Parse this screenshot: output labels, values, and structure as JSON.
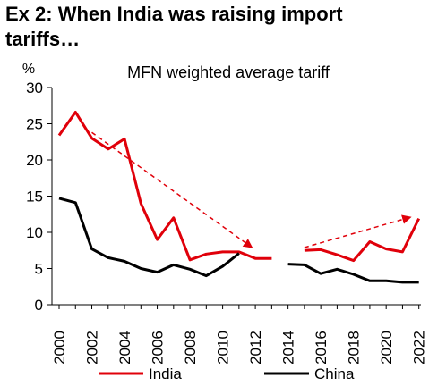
{
  "title": "Ex 2: When India was raising import tariffs…",
  "chart_data": {
    "type": "line",
    "subtitle": "MFN weighted average tariff",
    "ylabel": "%",
    "xlabel": "",
    "ylim": [
      0,
      30
    ],
    "xlim": [
      2000,
      2022
    ],
    "yticks": [
      0,
      5,
      10,
      15,
      20,
      25,
      30
    ],
    "xticks": [
      2000,
      2002,
      2004,
      2006,
      2008,
      2010,
      2012,
      2014,
      2016,
      2018,
      2020,
      2022
    ],
    "grid": false,
    "legend_position": "bottom",
    "series": [
      {
        "name": "India",
        "color": "#e0000a",
        "segments": [
          [
            [
              2000,
              23.4
            ],
            [
              2001,
              26.6
            ],
            [
              2002,
              23.0
            ],
            [
              2003,
              21.5
            ],
            [
              2004,
              22.9
            ],
            [
              2005,
              14.0
            ],
            [
              2006,
              9.0
            ],
            [
              2007,
              12.0
            ],
            [
              2008,
              6.2
            ],
            [
              2009,
              7.0
            ],
            [
              2010,
              7.3
            ],
            [
              2011,
              7.3
            ],
            [
              2012,
              6.4
            ],
            [
              2013,
              6.4
            ]
          ],
          [
            [
              2015,
              7.5
            ],
            [
              2016,
              7.6
            ],
            [
              2017,
              6.9
            ],
            [
              2018,
              6.1
            ],
            [
              2019,
              8.7
            ],
            [
              2020,
              7.7
            ],
            [
              2021,
              7.3
            ],
            [
              2022,
              11.9
            ]
          ]
        ]
      },
      {
        "name": "China",
        "color": "#000000",
        "segments": [
          [
            [
              2000,
              14.7
            ],
            [
              2001,
              14.1
            ],
            [
              2002,
              7.7
            ],
            [
              2003,
              6.5
            ],
            [
              2004,
              6.0
            ],
            [
              2005,
              5.0
            ],
            [
              2006,
              4.5
            ],
            [
              2007,
              5.5
            ],
            [
              2008,
              4.9
            ],
            [
              2009,
              4.0
            ],
            [
              2010,
              5.3
            ],
            [
              2011,
              7.1
            ]
          ],
          [
            [
              2014,
              5.6
            ],
            [
              2015,
              5.5
            ],
            [
              2016,
              4.3
            ],
            [
              2017,
              4.9
            ],
            [
              2018,
              4.2
            ],
            [
              2019,
              3.3
            ],
            [
              2020,
              3.3
            ],
            [
              2021,
              3.1
            ],
            [
              2022,
              3.1
            ]
          ]
        ]
      }
    ],
    "annotations": [
      {
        "type": "dashed-arrow",
        "color": "#e0000a",
        "from": [
          2002,
          23.8
        ],
        "to": [
          2011.8,
          7.9
        ]
      },
      {
        "type": "dashed-arrow",
        "color": "#e0000a",
        "from": [
          2015,
          7.9
        ],
        "to": [
          2021.5,
          12.1
        ]
      }
    ]
  }
}
